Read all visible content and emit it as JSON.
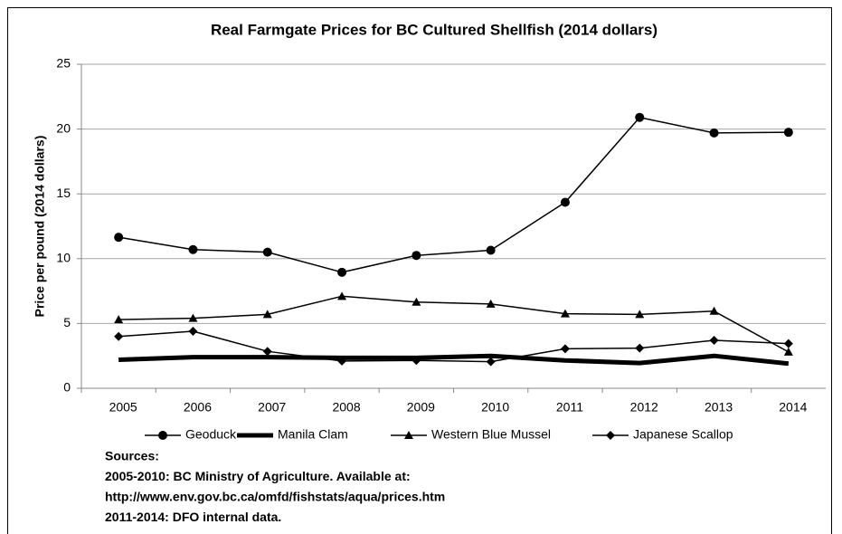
{
  "chart_data": {
    "type": "line",
    "title": "Real Farmgate Prices for BC Cultured Shellfish (2014 dollars)",
    "y_label": "Price per pound (2014 dollars)",
    "categories": [
      "2005",
      "2006",
      "2007",
      "2008",
      "2009",
      "2010",
      "2011",
      "2012",
      "2013",
      "2014"
    ],
    "series": [
      {
        "name": "Geoduck",
        "color": "#000000",
        "marker": "circle",
        "line_width": 1.5,
        "values": [
          11.65,
          10.7,
          10.5,
          8.95,
          10.25,
          10.65,
          14.35,
          20.9,
          19.7,
          19.75
        ]
      },
      {
        "name": "Manila Clam",
        "color": "#000000",
        "marker": "none",
        "line_width": 5,
        "values": [
          2.2,
          2.4,
          2.4,
          2.35,
          2.35,
          2.5,
          2.15,
          1.95,
          2.5,
          1.9
        ]
      },
      {
        "name": "Western Blue Mussel",
        "color": "#000000",
        "marker": "triangle",
        "line_width": 1.5,
        "values": [
          5.3,
          5.4,
          5.7,
          7.1,
          6.65,
          6.5,
          5.75,
          5.7,
          5.95,
          2.8
        ]
      },
      {
        "name": "Japanese Scallop",
        "color": "#000000",
        "marker": "diamond",
        "line_width": 1.5,
        "values": [
          4.0,
          4.4,
          2.85,
          2.1,
          2.15,
          2.05,
          3.05,
          3.1,
          3.7,
          3.45
        ]
      }
    ],
    "ylim": [
      0,
      25
    ],
    "yticks": [
      0,
      5,
      10,
      15,
      20,
      25
    ],
    "grid": true,
    "legend": "bottom",
    "notes": [
      "Sources:",
      "2005-2010: BC Ministry of Agriculture. Available at:",
      "http://www.env.gov.bc.ca/omfd/fishstats/aqua/prices.htm",
      "2011-2014: DFO internal data."
    ]
  }
}
